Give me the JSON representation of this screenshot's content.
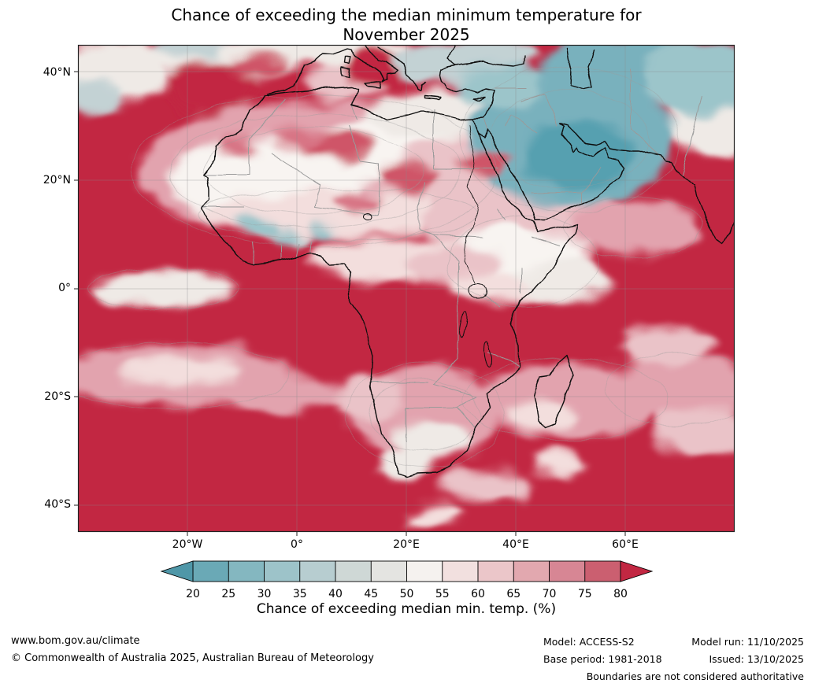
{
  "title": {
    "line1": "Chance of exceeding the median minimum temperature for",
    "line2": "November 2025"
  },
  "map": {
    "lat_ticks": [
      "40°N",
      "20°N",
      "0°",
      "20°S",
      "40°S"
    ],
    "lon_ticks": [
      "20°W",
      "0°",
      "20°E",
      "40°E",
      "60°E"
    ],
    "palette": {
      "field": "#c22742",
      "red2": "#cf5568",
      "red3": "#d87585",
      "pink1": "#e2a3ae",
      "pink2": "#eac3c8",
      "pink3": "#f3dedd",
      "white1": "#f8f4f1",
      "white2": "#efeae6",
      "grayblue": "#c3d2d4",
      "teal1": "#9cc5ca",
      "teal2": "#79b1bd",
      "teal3": "#57a0b0",
      "coastline": "#111111",
      "borders": "#9a9a9a",
      "grid": "#8a8a8a"
    }
  },
  "chart_data": {
    "type": "heatmap",
    "title": "Chance of exceeding the median minimum temperature for November 2025",
    "region_lat_ticks": [
      "40°N",
      "20°N",
      "0°",
      "20°S",
      "40°S"
    ],
    "region_lon_ticks": [
      "20°W",
      "0°",
      "20°E",
      "40°E",
      "60°E"
    ],
    "colorbar_label": "Chance of exceeding median min. temp. (%)",
    "colorbar_values": [
      20,
      25,
      30,
      35,
      40,
      45,
      50,
      55,
      60,
      65,
      70,
      75,
      80
    ],
    "colorbar_units": "%"
  },
  "legend": {
    "label": "Chance of exceeding median min. temp. (%)",
    "ticks": [
      "20",
      "25",
      "30",
      "35",
      "40",
      "45",
      "50",
      "55",
      "60",
      "65",
      "70",
      "75",
      "80"
    ],
    "segment_colors": [
      "#6aa9b6",
      "#84b7c0",
      "#9dc3c9",
      "#b7cdd0",
      "#cfd8d6",
      "#e4e4e1",
      "#f5f2ef",
      "#f2e0df",
      "#ebc6c9",
      "#e2a8af",
      "#d78694",
      "#cb5f70"
    ],
    "arrow_left_color": "#4f97a8",
    "arrow_right_color": "#c22742"
  },
  "footer": {
    "website": "www.bom.gov.au/climate",
    "copyright": "© Commonwealth of Australia 2025, Australian Bureau of Meteorology",
    "model": "Model: ACCESS-S2",
    "base_period": "Base period: 1981-2018",
    "model_run": "Model run: 11/10/2025",
    "issued": "Issued: 13/10/2025",
    "disclaimer": "Boundaries are not considered authoritative"
  }
}
